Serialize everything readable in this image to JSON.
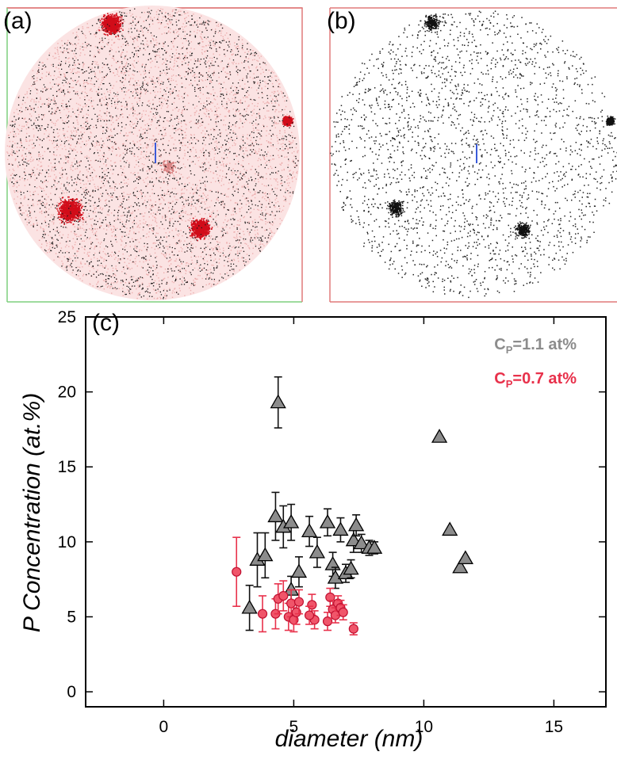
{
  "panels": {
    "a": {
      "label": "(a)"
    },
    "b": {
      "label": "(b)"
    },
    "c": {
      "label": "(c)"
    }
  },
  "colors": {
    "gray_series": "#8c8c8c",
    "red_series": "#e8314b",
    "frame_red": "#e07a7a",
    "frame_green": "#7fcf7f"
  },
  "chart_data": {
    "type": "scatter",
    "title": "",
    "xlabel": "diameter (nm)",
    "ylabel": "P Concentration (at.%)",
    "xlim": [
      -3,
      17
    ],
    "ylim": [
      -1,
      25
    ],
    "xticks": [
      0,
      5,
      10,
      15
    ],
    "yticks": [
      0,
      5,
      10,
      15,
      20,
      25
    ],
    "grid": false,
    "legend_position": "top-right",
    "series": [
      {
        "name": "C_P=1.1 at%",
        "legend": {
          "main": "C",
          "sub": "P",
          "rest": "=1.1 at%"
        },
        "marker": "triangle",
        "color": "#8c8c8c",
        "points": [
          {
            "x": 3.3,
            "y": 5.6,
            "err": 1.5
          },
          {
            "x": 3.6,
            "y": 8.8,
            "err": 1.8
          },
          {
            "x": 3.9,
            "y": 9.1,
            "err": 1.5
          },
          {
            "x": 4.3,
            "y": 11.7,
            "err": 1.6
          },
          {
            "x": 4.4,
            "y": 19.3,
            "err": 1.7
          },
          {
            "x": 4.6,
            "y": 11.0,
            "err": 1.4
          },
          {
            "x": 4.9,
            "y": 11.3,
            "err": 1.2
          },
          {
            "x": 4.9,
            "y": 6.8,
            "err": 0.9
          },
          {
            "x": 5.2,
            "y": 8.0,
            "err": 1.0
          },
          {
            "x": 5.6,
            "y": 10.7,
            "err": 1.0
          },
          {
            "x": 5.9,
            "y": 9.3,
            "err": 1.0
          },
          {
            "x": 6.3,
            "y": 11.3,
            "err": 0.9
          },
          {
            "x": 6.5,
            "y": 8.5,
            "err": 0.8
          },
          {
            "x": 6.6,
            "y": 7.6,
            "err": 0.7
          },
          {
            "x": 6.8,
            "y": 10.8,
            "err": 0.8
          },
          {
            "x": 7.0,
            "y": 7.9,
            "err": 0.6
          },
          {
            "x": 7.2,
            "y": 8.2,
            "err": 0.6
          },
          {
            "x": 7.3,
            "y": 10.1,
            "err": 0.8
          },
          {
            "x": 7.4,
            "y": 11.1,
            "err": 0.7
          },
          {
            "x": 7.6,
            "y": 9.9,
            "err": 0.6
          },
          {
            "x": 7.9,
            "y": 9.6,
            "err": 0.5
          },
          {
            "x": 8.1,
            "y": 9.6,
            "err": 0.4
          },
          {
            "x": 10.6,
            "y": 17.0,
            "err": 0
          },
          {
            "x": 11.0,
            "y": 10.8,
            "err": 0
          },
          {
            "x": 11.4,
            "y": 8.3,
            "err": 0
          },
          {
            "x": 11.6,
            "y": 8.9,
            "err": 0
          }
        ]
      },
      {
        "name": "C_P=0.7 at%",
        "legend": {
          "main": "C",
          "sub": "P",
          "rest": "=0.7 at%"
        },
        "marker": "circle",
        "color": "#e8314b",
        "points": [
          {
            "x": 2.8,
            "y": 8.0,
            "err": 2.3
          },
          {
            "x": 3.8,
            "y": 5.2,
            "err": 1.2
          },
          {
            "x": 4.3,
            "y": 5.2,
            "err": 1.0
          },
          {
            "x": 4.4,
            "y": 6.2,
            "err": 1.0
          },
          {
            "x": 4.6,
            "y": 6.4,
            "err": 1.0
          },
          {
            "x": 4.8,
            "y": 5.0,
            "err": 0.9
          },
          {
            "x": 4.9,
            "y": 5.9,
            "err": 0.9
          },
          {
            "x": 5.0,
            "y": 4.8,
            "err": 0.8
          },
          {
            "x": 5.1,
            "y": 5.3,
            "err": 0.8
          },
          {
            "x": 5.2,
            "y": 6.0,
            "err": 0.8
          },
          {
            "x": 5.7,
            "y": 5.8,
            "err": 0.7
          },
          {
            "x": 5.8,
            "y": 4.8,
            "err": 0.6
          },
          {
            "x": 5.6,
            "y": 5.1,
            "err": 0.6
          },
          {
            "x": 6.3,
            "y": 4.7,
            "err": 0.6
          },
          {
            "x": 6.4,
            "y": 6.3,
            "err": 0.6
          },
          {
            "x": 6.5,
            "y": 5.5,
            "err": 0.6
          },
          {
            "x": 6.6,
            "y": 5.1,
            "err": 0.5
          },
          {
            "x": 6.7,
            "y": 5.9,
            "err": 0.5
          },
          {
            "x": 6.8,
            "y": 5.6,
            "err": 0.5
          },
          {
            "x": 6.9,
            "y": 5.3,
            "err": 0.5
          },
          {
            "x": 7.3,
            "y": 4.2,
            "err": 0.4
          }
        ]
      }
    ]
  }
}
